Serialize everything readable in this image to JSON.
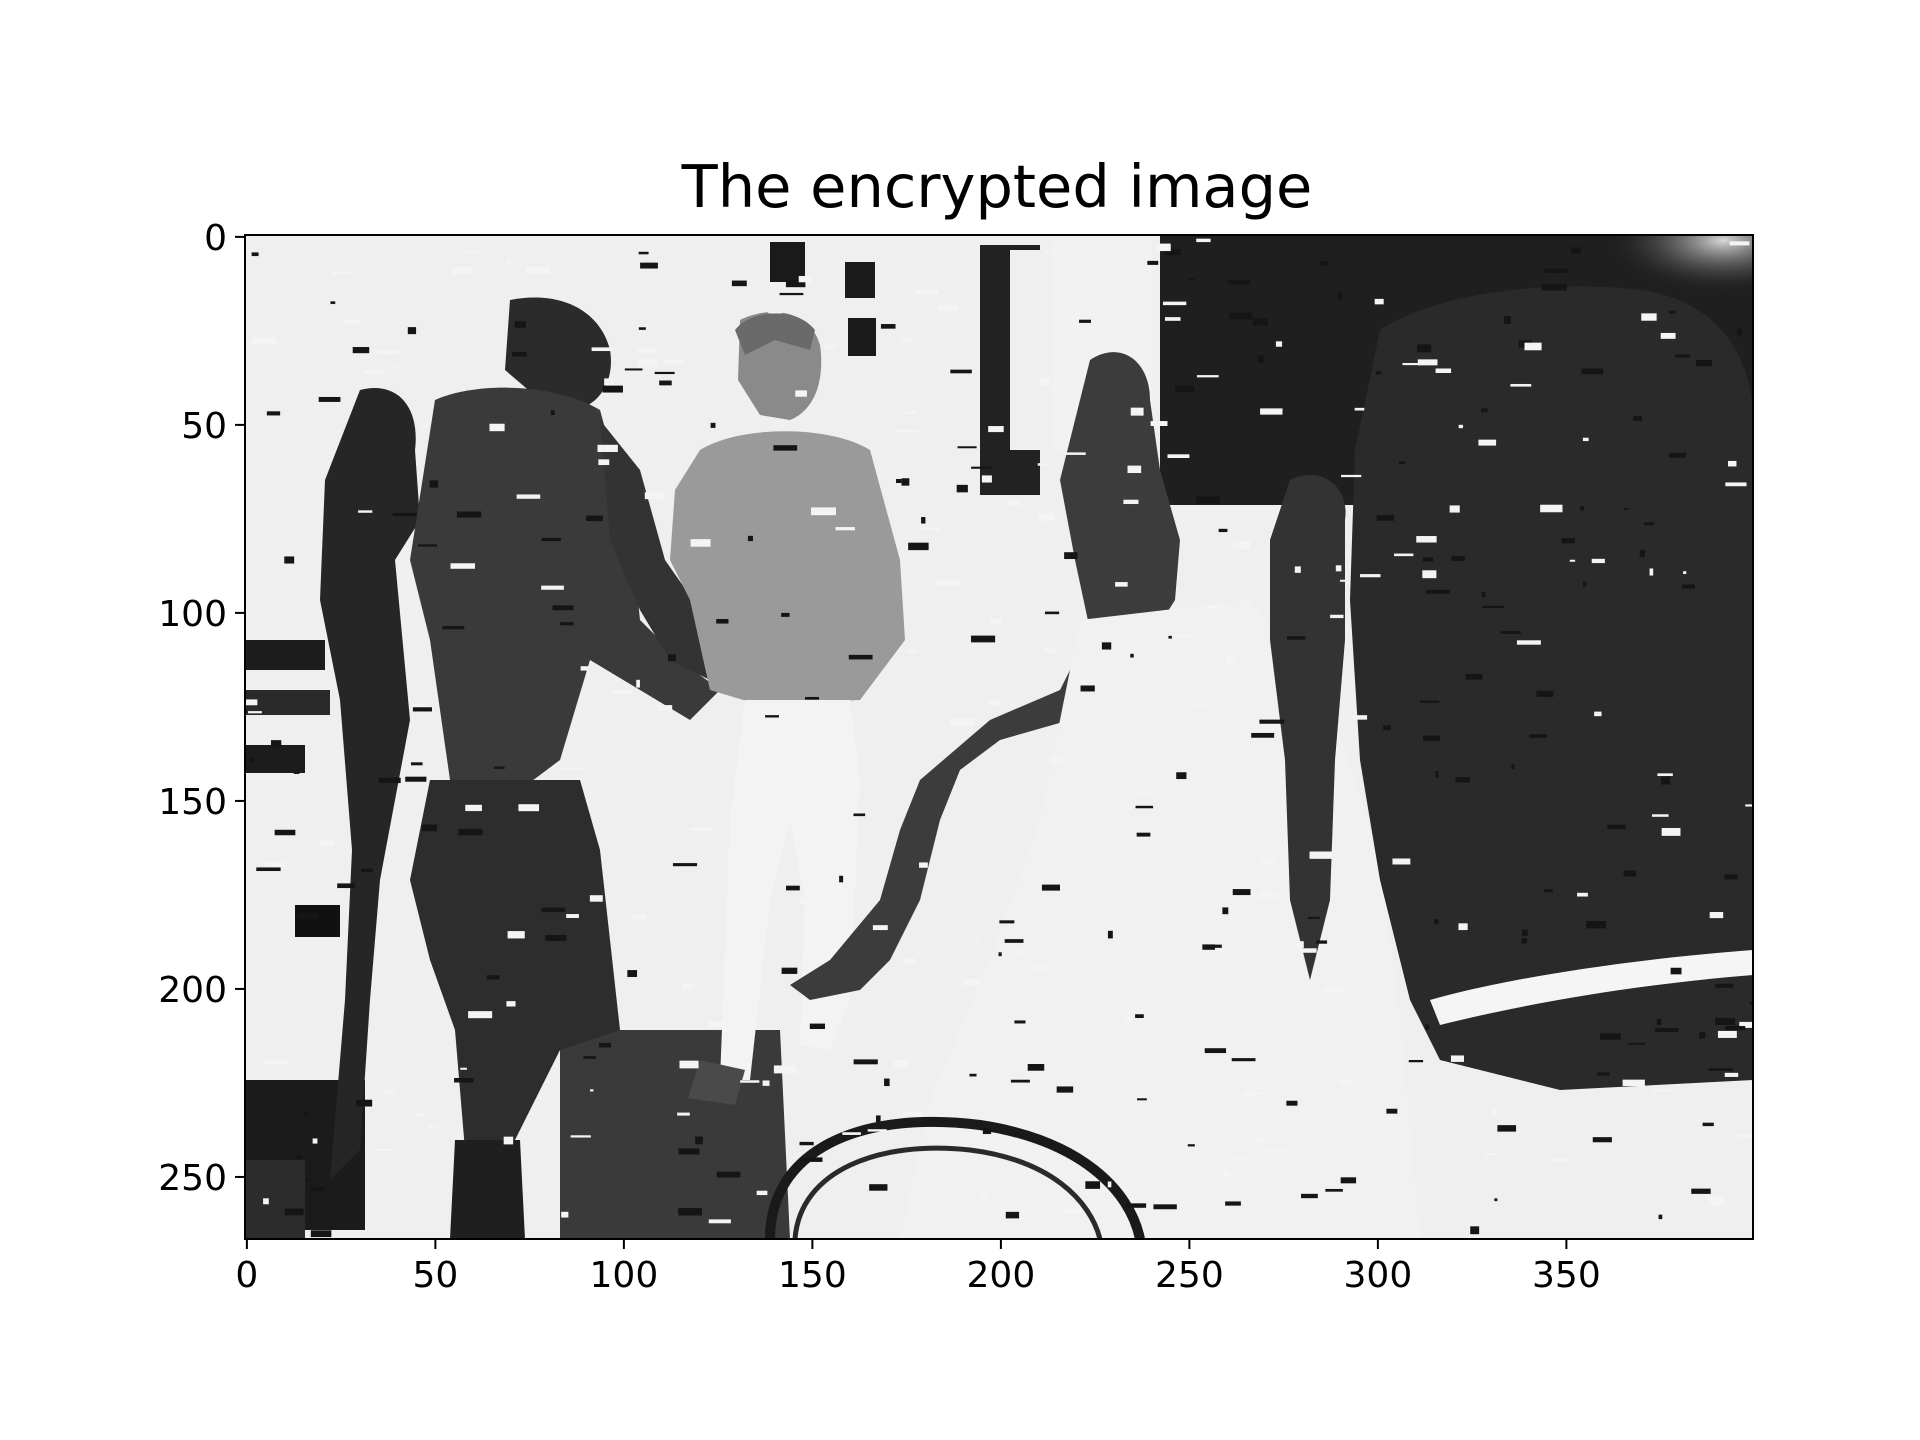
{
  "chart_data": {
    "type": "heatmap",
    "title": "The encrypted image",
    "xlabel": "",
    "ylabel": "",
    "colormap": "gray",
    "image_size": {
      "width": 400,
      "height": 267
    },
    "xlim": [
      -0.5,
      399.5
    ],
    "ylim": [
      266.5,
      -0.5
    ],
    "x_ticks": [
      0,
      50,
      100,
      150,
      200,
      250,
      300,
      350
    ],
    "y_ticks": [
      0,
      50,
      100,
      150,
      200,
      250
    ],
    "x_tick_labels": [
      "0",
      "50",
      "100",
      "150",
      "200",
      "250",
      "300",
      "350"
    ],
    "y_tick_labels": [
      "0",
      "50",
      "100",
      "150",
      "200",
      "250"
    ],
    "grid": false,
    "legend": "none",
    "image_content": "grayscale photograph of people on a street (standing man in t-shirt and shorts, a woman in a light blouse and white trousers, a child being lifted, a person in the foreground right) with many regions inverted to white/black by the encryption"
  }
}
